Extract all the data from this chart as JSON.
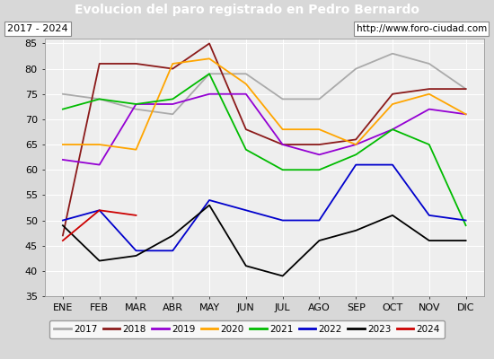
{
  "title": "Evolucion del paro registrado en Pedro Bernardo",
  "subtitle_left": "2017 - 2024",
  "subtitle_right": "http://www.foro-ciudad.com",
  "xlabel_months": [
    "ENE",
    "FEB",
    "MAR",
    "ABR",
    "MAY",
    "JUN",
    "JUL",
    "AGO",
    "SEP",
    "OCT",
    "NOV",
    "DIC"
  ],
  "ylim": [
    35,
    86
  ],
  "yticks": [
    35,
    40,
    45,
    50,
    55,
    60,
    65,
    70,
    75,
    80,
    85
  ],
  "series": {
    "2017": {
      "color": "#aaaaaa",
      "values": [
        75,
        74,
        72,
        71,
        79,
        79,
        74,
        74,
        80,
        83,
        81,
        76
      ]
    },
    "2018": {
      "color": "#8b1a1a",
      "values": [
        47,
        81,
        81,
        80,
        85,
        68,
        65,
        65,
        66,
        75,
        76,
        76
      ]
    },
    "2019": {
      "color": "#9400d3",
      "values": [
        62,
        61,
        73,
        73,
        75,
        75,
        65,
        63,
        65,
        68,
        72,
        71
      ]
    },
    "2020": {
      "color": "#ffa500",
      "values": [
        65,
        65,
        64,
        81,
        82,
        77,
        68,
        68,
        65,
        73,
        75,
        71
      ]
    },
    "2021": {
      "color": "#00bb00",
      "values": [
        72,
        74,
        73,
        74,
        79,
        64,
        60,
        60,
        63,
        68,
        65,
        49
      ]
    },
    "2022": {
      "color": "#0000cc",
      "values": [
        50,
        52,
        44,
        44,
        54,
        52,
        50,
        50,
        61,
        61,
        51,
        50
      ]
    },
    "2023": {
      "color": "#000000",
      "values": [
        49,
        42,
        43,
        47,
        53,
        41,
        39,
        46,
        48,
        51,
        46,
        46
      ]
    },
    "2024": {
      "color": "#cc0000",
      "values": [
        46,
        52,
        51,
        null,
        null,
        null,
        null,
        null,
        null,
        null,
        null,
        null
      ]
    }
  },
  "background_color": "#d8d8d8",
  "plot_background": "#eeeeee",
  "title_bg": "#4472c4",
  "title_color": "white",
  "grid_color": "white",
  "title_fontsize": 10,
  "tick_fontsize": 8
}
